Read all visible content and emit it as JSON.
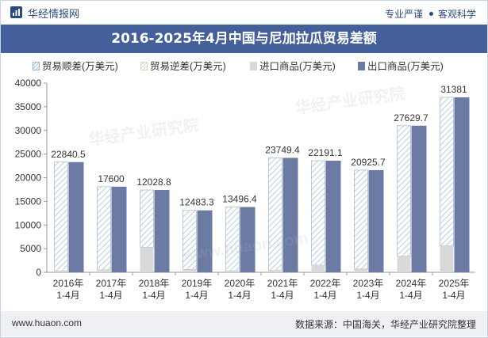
{
  "header": {
    "brand": "华经情报网",
    "tagline_left": "专业严谨",
    "tagline_right": "客观科学"
  },
  "watermarks": [
    "华经产业研究院",
    "www.huaon.com"
  ],
  "colors": {
    "title_bg": "#44609a",
    "export_bar": "#6b7ba4",
    "import_bar": "#d9d9d9",
    "surplus_hatch": "#bcd0e3",
    "deficit_hatch": "#e3e3d3"
  },
  "chart_data": {
    "type": "bar",
    "title": "2016-2025年4月中国与尼加拉瓜贸易差额",
    "categories": [
      "2016年\n1-4月",
      "2017年\n1-4月",
      "2018年\n1-4月",
      "2019年\n1-4月",
      "2020年\n1-4月",
      "2021年\n1-4月",
      "2022年\n1-4月",
      "2023年\n1-4月",
      "2024年\n1-4月",
      "2025年\n1-4月"
    ],
    "series": [
      {
        "name": "贸易顺差(万美元)",
        "values": [
          22840.5,
          17600,
          12028.8,
          12483.3,
          13496.4,
          23749.4,
          22191.1,
          20925.7,
          27629.7,
          31381
        ]
      },
      {
        "name": "贸易逆差(万美元)",
        "values": [
          0,
          0,
          0,
          0,
          0,
          0,
          0,
          0,
          0,
          0
        ]
      },
      {
        "name": "进口商品(万美元)",
        "values": [
          300,
          500,
          5300,
          600,
          300,
          400,
          1500,
          700,
          3400,
          5600
        ]
      },
      {
        "name": "出口商品(万美元)",
        "values": [
          23300,
          18100,
          17400,
          13100,
          13800,
          24200,
          23600,
          21600,
          31000,
          37000
        ]
      }
    ],
    "data_labels": [
      "22840.5",
      "17600",
      "12028.8",
      "12483.3",
      "13496.4",
      "23749.4",
      "22191.1",
      "20925.7",
      "27629.7",
      "31381"
    ],
    "ylim": [
      0,
      40000
    ],
    "yticks": [
      "0",
      "5000",
      "10000",
      "15000",
      "20000",
      "25000",
      "30000",
      "35000",
      "40000"
    ],
    "legend_position": "top",
    "grid": false
  },
  "footer": {
    "site": "www.huaon.com",
    "source": "数据来源：中国海关，华经产业研究院整理"
  }
}
